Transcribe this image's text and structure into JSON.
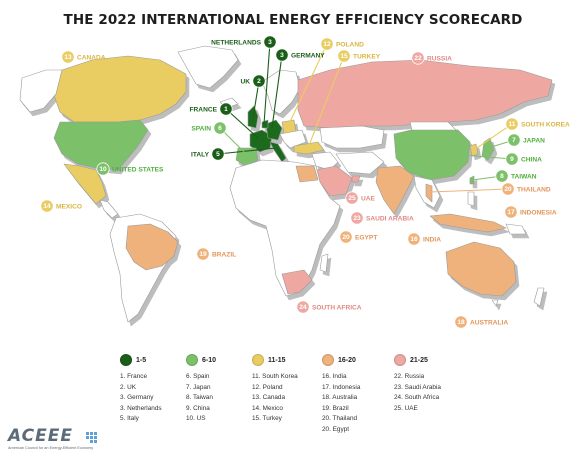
{
  "title": "THE 2022 INTERNATIONAL ENERGY EFFICIENCY SCORECARD",
  "colors": {
    "tier1": "#1a6b1a",
    "tier2": "#7dc06a",
    "tier3": "#e9cc62",
    "tier4": "#efb27b",
    "tier5": "#efa7a1",
    "unranked": "#ffffff",
    "border": "#9a9a9a",
    "shadow": "#c9c9c9"
  },
  "markers": [
    {
      "rank": "1",
      "name": "FRANCE",
      "tier": 1
    },
    {
      "rank": "2",
      "name": "UK",
      "tier": 1
    },
    {
      "rank": "3",
      "name": "GERMANY",
      "tier": 1
    },
    {
      "rank": "3",
      "name": "NETHERLANDS",
      "tier": 1
    },
    {
      "rank": "5",
      "name": "ITALY",
      "tier": 1
    },
    {
      "rank": "6",
      "name": "SPAIN",
      "tier": 2
    },
    {
      "rank": "7",
      "name": "JAPAN",
      "tier": 2
    },
    {
      "rank": "8",
      "name": "TAIWAN",
      "tier": 2
    },
    {
      "rank": "9",
      "name": "CHINA",
      "tier": 2
    },
    {
      "rank": "10",
      "name": "UNITED STATES",
      "tier": 2
    },
    {
      "rank": "11",
      "name": "SOUTH KOREA",
      "tier": 3
    },
    {
      "rank": "12",
      "name": "POLAND",
      "tier": 3
    },
    {
      "rank": "13",
      "name": "CANADA",
      "tier": 3
    },
    {
      "rank": "14",
      "name": "MEXICO",
      "tier": 3
    },
    {
      "rank": "15",
      "name": "TURKEY",
      "tier": 3
    },
    {
      "rank": "16",
      "name": "INDIA",
      "tier": 4
    },
    {
      "rank": "17",
      "name": "INDONESIA",
      "tier": 4
    },
    {
      "rank": "18",
      "name": "AUSTRALIA",
      "tier": 4
    },
    {
      "rank": "19",
      "name": "BRAZIL",
      "tier": 4
    },
    {
      "rank": "20",
      "name": "THAILAND",
      "tier": 4
    },
    {
      "rank": "20",
      "name": "EGYPT",
      "tier": 4
    },
    {
      "rank": "22",
      "name": "RUSSIA",
      "tier": 5
    },
    {
      "rank": "23",
      "name": "SAUDI ARABIA",
      "tier": 5
    },
    {
      "rank": "24",
      "name": "SOUTH AFRICA",
      "tier": 5
    },
    {
      "rank": "25",
      "name": "UAE",
      "tier": 5
    }
  ],
  "legend": [
    {
      "label": "1-5",
      "tier": 1
    },
    {
      "label": "6-10",
      "tier": 2
    },
    {
      "label": "11-15",
      "tier": 3
    },
    {
      "label": "16-20",
      "tier": 4
    },
    {
      "label": "21-25",
      "tier": 5
    }
  ],
  "rankings": [
    [
      "1. France",
      "2. UK",
      "3. Germany",
      "3. Netherlands",
      "5. Italy"
    ],
    [
      "6. Spain",
      "7. Japan",
      "8. Taiwan",
      "9. China",
      "10. US"
    ],
    [
      "11. South Korea",
      "12. Poland",
      "13. Canada",
      "14. Mexico",
      "15. Turkey"
    ],
    [
      "16. India",
      "17. Indonesia",
      "18. Australia",
      "19. Brazil",
      "20. Thailand",
      "20. Egypt"
    ],
    [
      "22. Russia",
      "23. Saudi Arabia",
      "24. South Africa",
      "25. UAE"
    ]
  ],
  "logo": {
    "word": "ACEEE",
    "tagline": "American Council for an Energy-Efficient Economy"
  }
}
